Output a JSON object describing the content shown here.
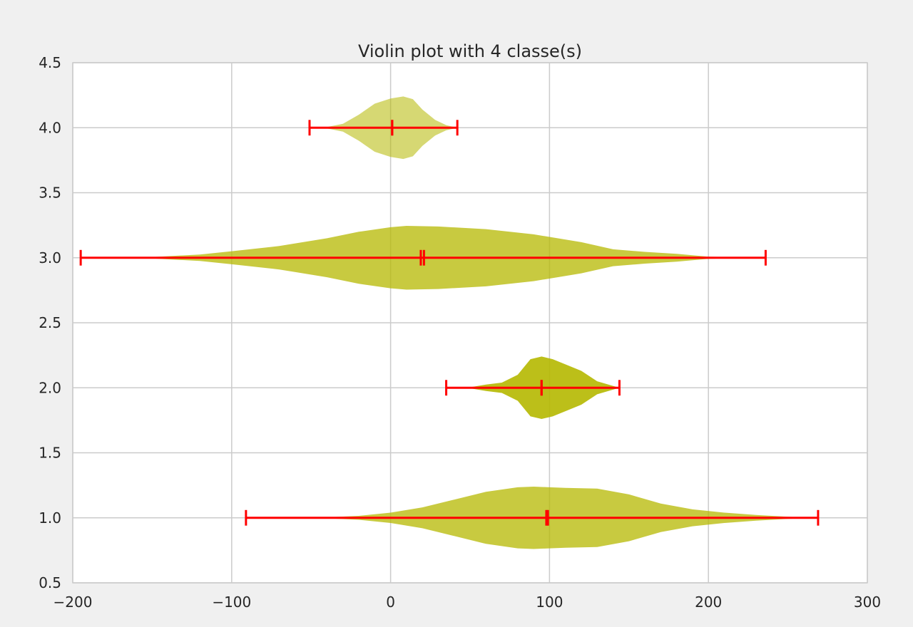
{
  "chart_data": {
    "type": "violin",
    "orientation": "horizontal",
    "title": "Violin plot with 4 classe(s)",
    "xlabel": "",
    "ylabel": "",
    "xlim": [
      -200,
      300
    ],
    "ylim": [
      0.5,
      4.5
    ],
    "x_ticks": [
      -200,
      -100,
      0,
      100,
      200,
      300
    ],
    "x_tick_labels": [
      "−200",
      "−100",
      "0",
      "100",
      "200",
      "300"
    ],
    "y_ticks": [
      0.5,
      1.0,
      1.5,
      2.0,
      2.5,
      3.0,
      3.5,
      4.0,
      4.5
    ],
    "y_tick_labels": [
      "0.5",
      "1.0",
      "1.5",
      "2.0",
      "2.5",
      "3.0",
      "3.5",
      "4.0",
      "4.5"
    ],
    "grid": true,
    "colors": {
      "violin_fill": "#b5b800",
      "whisker": "#ff0000",
      "grid": "#cbcbcb",
      "axes_edge": "#cbcbcb",
      "plot_bg": "#ffffff",
      "figure_bg": "#f0f0f0"
    },
    "violins": [
      {
        "position": 1,
        "min": -91,
        "max": 269,
        "mean": 99,
        "median": 98,
        "opacity": 0.75,
        "profile": [
          [
            -91,
            0
          ],
          [
            -40,
            0.004
          ],
          [
            -20,
            0.015
          ],
          [
            0,
            0.04
          ],
          [
            20,
            0.08
          ],
          [
            40,
            0.14
          ],
          [
            60,
            0.2
          ],
          [
            80,
            0.235
          ],
          [
            90,
            0.24
          ],
          [
            100,
            0.235
          ],
          [
            110,
            0.23
          ],
          [
            130,
            0.225
          ],
          [
            150,
            0.18
          ],
          [
            170,
            0.11
          ],
          [
            190,
            0.065
          ],
          [
            210,
            0.04
          ],
          [
            230,
            0.022
          ],
          [
            250,
            0.008
          ],
          [
            269,
            0
          ]
        ]
      },
      {
        "position": 2,
        "min": 35,
        "max": 144,
        "mean": 95,
        "median": 95,
        "opacity": 0.9,
        "profile": [
          [
            35,
            0
          ],
          [
            50,
            0.004
          ],
          [
            60,
            0.025
          ],
          [
            70,
            0.04
          ],
          [
            80,
            0.1
          ],
          [
            88,
            0.22
          ],
          [
            95,
            0.24
          ],
          [
            102,
            0.22
          ],
          [
            110,
            0.18
          ],
          [
            120,
            0.13
          ],
          [
            130,
            0.05
          ],
          [
            144,
            0
          ]
        ]
      },
      {
        "position": 3,
        "min": -195,
        "max": 236,
        "mean": 21,
        "median": 19,
        "opacity": 0.75,
        "profile": [
          [
            -195,
            0
          ],
          [
            -150,
            0.005
          ],
          [
            -120,
            0.025
          ],
          [
            -100,
            0.05
          ],
          [
            -70,
            0.09
          ],
          [
            -40,
            0.15
          ],
          [
            -20,
            0.2
          ],
          [
            0,
            0.235
          ],
          [
            10,
            0.245
          ],
          [
            30,
            0.24
          ],
          [
            60,
            0.22
          ],
          [
            90,
            0.18
          ],
          [
            120,
            0.12
          ],
          [
            140,
            0.065
          ],
          [
            160,
            0.045
          ],
          [
            180,
            0.03
          ],
          [
            200,
            0.008
          ],
          [
            236,
            0
          ]
        ]
      },
      {
        "position": 4,
        "min": -51,
        "max": 42,
        "mean": 1,
        "median": 1,
        "opacity": 0.55,
        "profile": [
          [
            -51,
            0
          ],
          [
            -40,
            0.005
          ],
          [
            -30,
            0.03
          ],
          [
            -20,
            0.1
          ],
          [
            -10,
            0.185
          ],
          [
            0,
            0.225
          ],
          [
            8,
            0.24
          ],
          [
            14,
            0.22
          ],
          [
            20,
            0.14
          ],
          [
            28,
            0.06
          ],
          [
            35,
            0.02
          ],
          [
            42,
            0
          ]
        ]
      }
    ]
  }
}
